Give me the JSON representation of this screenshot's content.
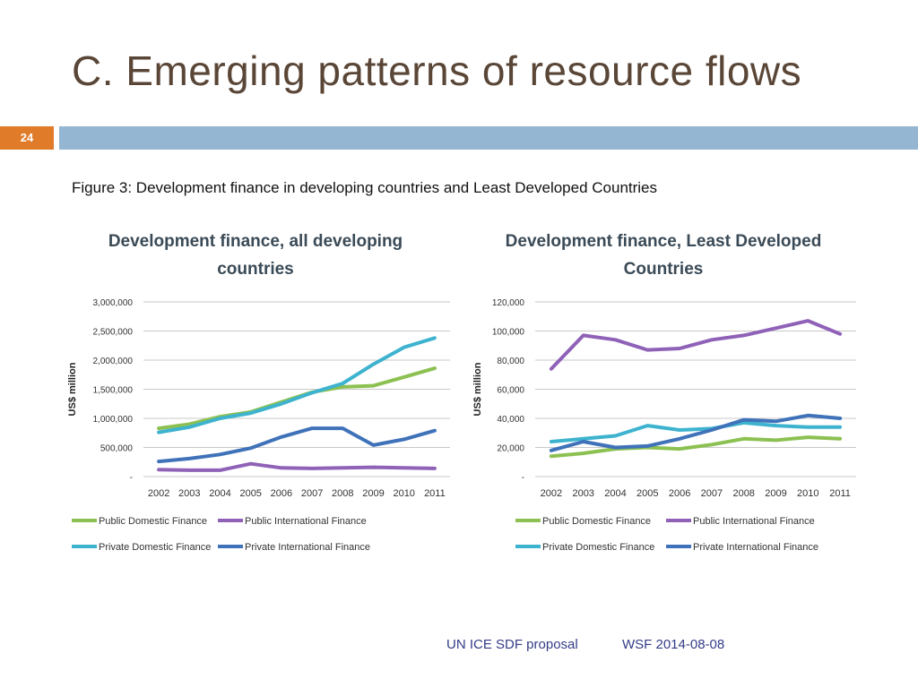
{
  "slide": {
    "title": "C. Emerging patterns of resource flows",
    "page_number": "24",
    "caption": "Figure 3: Development finance in developing countries and Least Developed Countries",
    "footer_left": "UN ICE SDF proposal",
    "footer_right": "WSF 2014-08-08",
    "accent_color": "#e07b29",
    "bar_color": "#94b6d2"
  },
  "chart_data": [
    {
      "type": "line",
      "title": "Development finance, all developing countries",
      "ylabel": "US$ million",
      "xlabel": "",
      "x": [
        "2002",
        "2003",
        "2004",
        "2005",
        "2006",
        "2007",
        "2008",
        "2009",
        "2010",
        "2011"
      ],
      "ylim": [
        0,
        3000000
      ],
      "yticks": [
        0,
        500000,
        1000000,
        1500000,
        2000000,
        2500000,
        3000000
      ],
      "ytick_labels": [
        "-",
        "500,000",
        "1,000,000",
        "1,500,000",
        "2,000,000",
        "2,500,000",
        "3,000,000"
      ],
      "grid": true,
      "legend_position": "bottom",
      "series": [
        {
          "name": "Public Domestic Finance",
          "color": "#8cc152",
          "values": [
            830000,
            900000,
            1030000,
            1110000,
            1280000,
            1450000,
            1540000,
            1560000,
            1710000,
            1860000
          ]
        },
        {
          "name": "Public International Finance",
          "color": "#8f62b8",
          "values": [
            120000,
            110000,
            110000,
            220000,
            150000,
            140000,
            150000,
            160000,
            150000,
            140000
          ]
        },
        {
          "name": "Private Domestic Finance",
          "color": "#3eb3cf",
          "values": [
            760000,
            850000,
            1000000,
            1090000,
            1250000,
            1440000,
            1600000,
            1930000,
            2220000,
            2380000
          ]
        },
        {
          "name": "Private International Finance",
          "color": "#3f72b9",
          "values": [
            260000,
            310000,
            380000,
            490000,
            680000,
            830000,
            830000,
            540000,
            640000,
            790000
          ]
        }
      ]
    },
    {
      "type": "line",
      "title": "Development finance, Least Developed Countries",
      "ylabel": "US$ million",
      "xlabel": "",
      "x": [
        "2002",
        "2003",
        "2004",
        "2005",
        "2006",
        "2007",
        "2008",
        "2009",
        "2010",
        "2011"
      ],
      "ylim": [
        0,
        120000
      ],
      "yticks": [
        0,
        20000,
        40000,
        60000,
        80000,
        100000,
        120000
      ],
      "ytick_labels": [
        "-",
        "20,000",
        "40,000",
        "60,000",
        "80,000",
        "100,000",
        "120,000"
      ],
      "grid": true,
      "legend_position": "bottom",
      "series": [
        {
          "name": "Public Domestic Finance",
          "color": "#8cc152",
          "values": [
            14000,
            16000,
            19000,
            20000,
            19000,
            22000,
            26000,
            25000,
            27000,
            26000
          ]
        },
        {
          "name": "Public International Finance",
          "color": "#8f62b8",
          "values": [
            74000,
            97000,
            94000,
            87000,
            88000,
            94000,
            97000,
            102000,
            107000,
            98000
          ]
        },
        {
          "name": "Private Domestic Finance",
          "color": "#3eb3cf",
          "values": [
            24000,
            26000,
            28000,
            35000,
            32000,
            33000,
            37000,
            35000,
            34000,
            34000
          ]
        },
        {
          "name": "Private International Finance",
          "color": "#3f72b9",
          "values": [
            18000,
            24000,
            20000,
            21000,
            26000,
            32000,
            39000,
            38000,
            42000,
            40000
          ]
        }
      ]
    }
  ]
}
